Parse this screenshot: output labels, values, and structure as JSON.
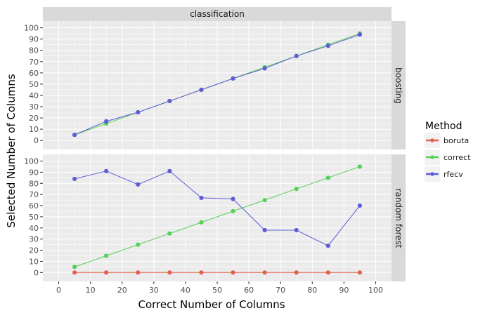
{
  "chart_data": {
    "type": "line",
    "facet_column_title": "classification",
    "xlabel": "Correct Number of Columns",
    "ylabel": "Selected Number of Columns",
    "xlim": [
      -5,
      105
    ],
    "x_ticks": [
      0,
      10,
      20,
      30,
      40,
      50,
      60,
      70,
      80,
      90,
      100
    ],
    "y_ticks": [
      0,
      10,
      20,
      30,
      40,
      50,
      60,
      70,
      80,
      90,
      100
    ],
    "grid": true,
    "legend": {
      "title": "Method",
      "position": "right",
      "entries": [
        {
          "name": "boruta",
          "color": "#E0604D"
        },
        {
          "name": "correct",
          "color": "#57D05A"
        },
        {
          "name": "rfecv",
          "color": "#5E5CD6"
        }
      ]
    },
    "panels": [
      {
        "row_label": "boosting",
        "ylim": [
          -8,
          106
        ],
        "series": [
          {
            "name": "correct",
            "x": [
              5,
              15,
              25,
              35,
              45,
              55,
              65,
              75,
              85,
              95
            ],
            "y": [
              5,
              15,
              25,
              35,
              45,
              55,
              65,
              75,
              85,
              95
            ]
          },
          {
            "name": "rfecv",
            "x": [
              5,
              15,
              25,
              35,
              45,
              55,
              65,
              75,
              85,
              95
            ],
            "y": [
              5,
              17,
              25,
              35,
              45,
              55,
              64,
              75,
              84,
              94
            ]
          }
        ]
      },
      {
        "row_label": "random forest",
        "ylim": [
          -8,
          106
        ],
        "series": [
          {
            "name": "boruta",
            "x": [
              5,
              15,
              25,
              35,
              45,
              55,
              65,
              75,
              85,
              95
            ],
            "y": [
              0,
              0,
              0,
              0,
              0,
              0,
              0,
              0,
              0,
              0
            ]
          },
          {
            "name": "correct",
            "x": [
              5,
              15,
              25,
              35,
              45,
              55,
              65,
              75,
              85,
              95
            ],
            "y": [
              5,
              15,
              25,
              35,
              45,
              55,
              65,
              75,
              85,
              95
            ]
          },
          {
            "name": "rfecv",
            "x": [
              5,
              15,
              25,
              35,
              45,
              55,
              65,
              75,
              85,
              95
            ],
            "y": [
              84,
              91,
              79,
              91,
              67,
              66,
              38,
              38,
              24,
              60
            ]
          }
        ]
      }
    ]
  }
}
